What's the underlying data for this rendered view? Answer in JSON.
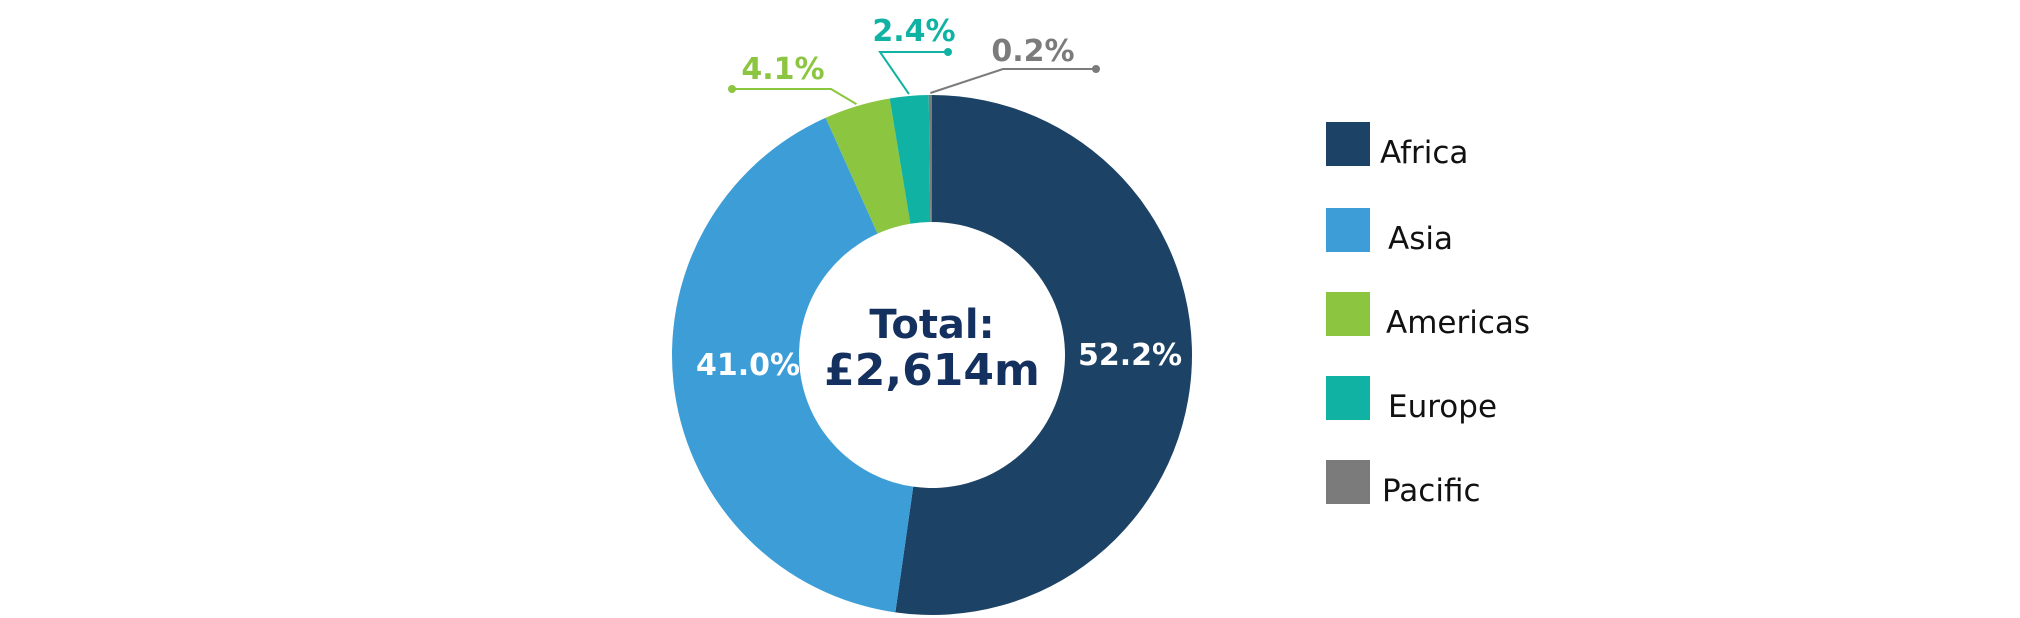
{
  "chart_data": {
    "type": "pie",
    "style": "donut",
    "center_label": [
      "Total:",
      "£2,614m"
    ],
    "slices": [
      {
        "name": "Africa",
        "value": 52.2,
        "label": "52.2%",
        "color": "#1c4266",
        "label_color": "#ffffff"
      },
      {
        "name": "Asia",
        "value": 41.0,
        "label": "41.0%",
        "color": "#3d9dd7",
        "label_color": "#ffffff"
      },
      {
        "name": "Americas",
        "value": 4.1,
        "label": "4.1%",
        "color": "#8cc540",
        "label_color": "#8cc540"
      },
      {
        "name": "Europe",
        "value": 2.4,
        "label": "2.4%",
        "color": "#10b3a3",
        "label_color": "#10b3a3"
      },
      {
        "name": "Pacific",
        "value": 0.2,
        "label": "0.2%",
        "color": "#7b7b7b",
        "label_color": "#7b7b7b"
      }
    ],
    "legend_position": "right"
  },
  "colors": {
    "center_text": "#14305f"
  }
}
